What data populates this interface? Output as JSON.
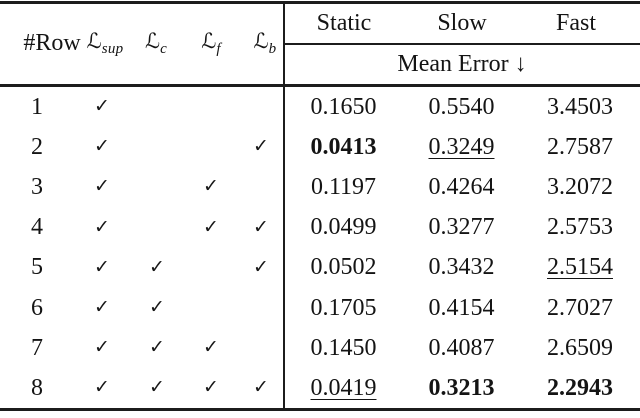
{
  "page": {
    "background_color": "#ffffff",
    "text_color": "#141414",
    "rule_color": "#1c1c1c"
  },
  "table": {
    "header": {
      "row_col_label": "#Row",
      "losses": [
        {
          "main": "ℒ",
          "sub": "sup"
        },
        {
          "main": "ℒ",
          "sub": "c"
        },
        {
          "main": "ℒ",
          "sub": "f"
        },
        {
          "main": "ℒ",
          "sub": "b"
        }
      ],
      "metric_cols": [
        "Static",
        "Slow",
        "Fast"
      ],
      "metric_group_label": "Mean Error ↓"
    },
    "check_glyph": "✓",
    "rows": [
      {
        "num": "1",
        "l_sup": "✓",
        "l_c": "",
        "l_f": "",
        "l_b": "",
        "static": "0.1650",
        "slow": "0.5540",
        "fast": "3.4503"
      },
      {
        "num": "2",
        "l_sup": "✓",
        "l_c": "",
        "l_f": "",
        "l_b": "✓",
        "static": "0.0413",
        "slow": "0.3249",
        "fast": "2.7587"
      },
      {
        "num": "3",
        "l_sup": "✓",
        "l_c": "",
        "l_f": "✓",
        "l_b": "",
        "static": "0.1197",
        "slow": "0.4264",
        "fast": "3.2072"
      },
      {
        "num": "4",
        "l_sup": "✓",
        "l_c": "",
        "l_f": "✓",
        "l_b": "✓",
        "static": "0.0499",
        "slow": "0.3277",
        "fast": "2.5753"
      },
      {
        "num": "5",
        "l_sup": "✓",
        "l_c": "✓",
        "l_f": "",
        "l_b": "✓",
        "static": "0.0502",
        "slow": "0.3432",
        "fast": "2.5154"
      },
      {
        "num": "6",
        "l_sup": "✓",
        "l_c": "✓",
        "l_f": "",
        "l_b": "",
        "static": "0.1705",
        "slow": "0.4154",
        "fast": "2.7027"
      },
      {
        "num": "7",
        "l_sup": "✓",
        "l_c": "✓",
        "l_f": "✓",
        "l_b": "",
        "static": "0.1450",
        "slow": "0.4087",
        "fast": "2.6509"
      },
      {
        "num": "8",
        "l_sup": "✓",
        "l_c": "✓",
        "l_f": "✓",
        "l_b": "✓",
        "static": "0.0419",
        "slow": "0.3213",
        "fast": "2.2943"
      }
    ],
    "emphasis": {
      "bold_cells": [
        "row2.static",
        "row8.slow",
        "row8.fast"
      ],
      "underline_cells": [
        "row2.slow",
        "row5.fast",
        "row8.static"
      ]
    }
  }
}
